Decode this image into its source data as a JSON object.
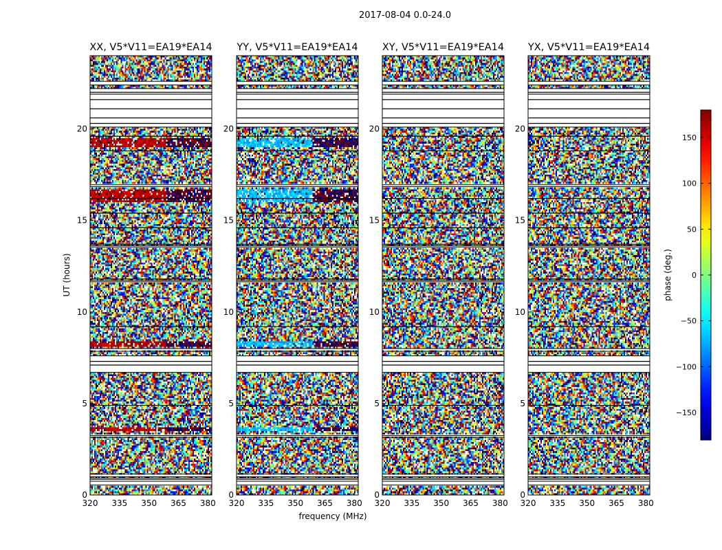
{
  "chart_data": {
    "type": "heatmap",
    "title": "2017-08-04 0.0-24.0",
    "xlabel": "frequency (MHz)",
    "ylabel": "UT (hours)",
    "xlim": [
      320,
      382
    ],
    "ylim": [
      0,
      24
    ],
    "x_ticks": [
      "320",
      "335",
      "350",
      "365",
      "380"
    ],
    "y_ticks": [
      "0",
      "5",
      "10",
      "15",
      "20"
    ],
    "panels": [
      {
        "title": "XX, V5*V11=EA19*EA14",
        "bias": "red"
      },
      {
        "title": "YY, V5*V11=EA19*EA14",
        "bias": "blue"
      },
      {
        "title": "XY, V5*V11=EA19*EA14",
        "bias": "none"
      },
      {
        "title": "YX, V5*V11=EA19*EA14",
        "bias": "none"
      }
    ],
    "colorbar": {
      "label": "phase (deg.)",
      "range": [
        -180,
        180
      ],
      "ticks": [
        "150",
        "100",
        "50",
        "0",
        "−50",
        "−100",
        "−150"
      ],
      "tick_values": [
        150,
        100,
        50,
        0,
        -50,
        -100,
        -150
      ],
      "colormap": "jet"
    },
    "gaps_hours": [
      [
        0.55,
        0.75
      ],
      [
        1.0,
        1.15
      ],
      [
        6.7,
        7.6
      ],
      [
        7.85,
        8.0
      ],
      [
        20.1,
        22.2
      ],
      [
        22.4,
        22.6
      ],
      [
        16.85,
        16.95
      ],
      [
        3.15,
        3.25
      ],
      [
        13.55,
        13.62
      ],
      [
        11.65,
        11.72
      ],
      [
        0.85,
        0.92
      ]
    ],
    "gap_line_hours": [
      20.3,
      20.6,
      21.1,
      21.6,
      21.9,
      22.0,
      16.2,
      13.7,
      11.8,
      7.3,
      7.1,
      18.8,
      19.6,
      15.4,
      14.6,
      9.2,
      4.9
    ],
    "colorbar_ticks_hidden": [
      -180,
      180
    ]
  }
}
